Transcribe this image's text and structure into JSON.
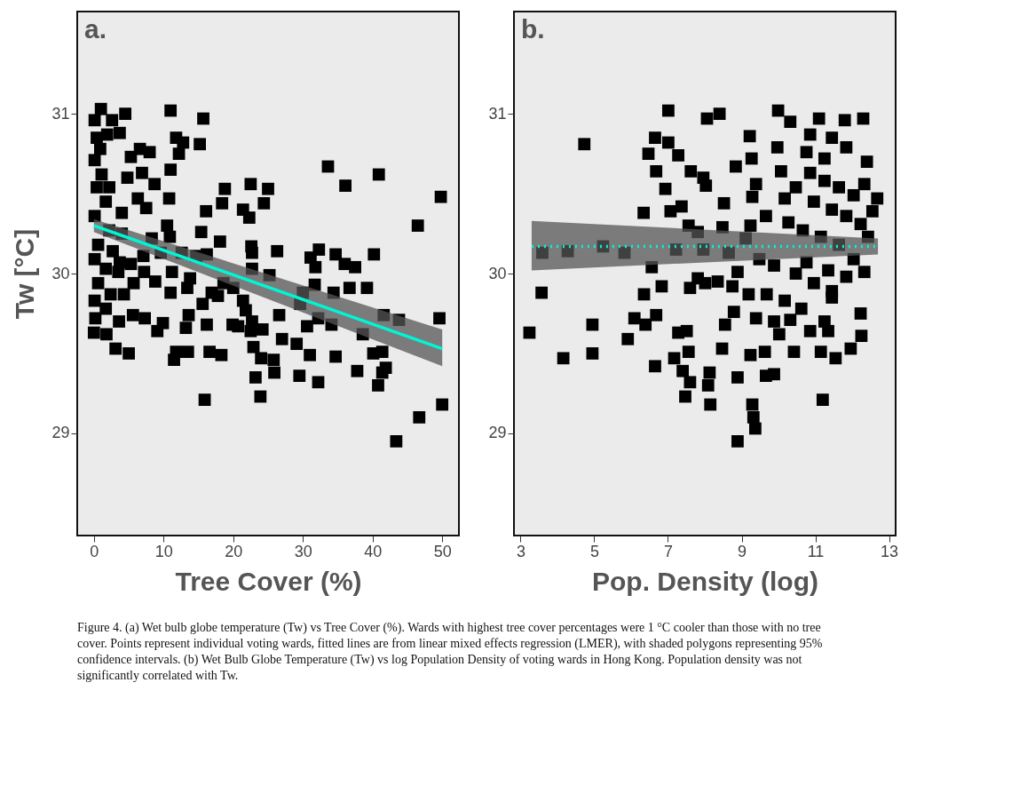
{
  "chart_data": [
    {
      "type": "scatter",
      "xlabel": "Tree Cover (%)",
      "ylabel": "Tw [°C]",
      "xlim": [
        -2.4,
        52.4
      ],
      "ylim": [
        28.36,
        31.64
      ],
      "xticks": [
        0,
        10,
        20,
        30,
        40,
        50
      ],
      "yticks": [
        29,
        30,
        31
      ],
      "grid": false,
      "legend": false,
      "annotations": [
        "a.",
        "Figure 4. (a) Wet bulb globe temperature (Tw) vs Tree Cover (%). Wards with highest tree cover percentages were 1 °C cooler than those with no tree cover. Points represent individual voting wards, fitted lines are from linear mixed effects regression (LMER), with shaded polygons representing 95% confidence intervals. (b) Wet Bulb Globe Temperature (Tw) vs log Population Density of voting wards in Hong Kong. Population density was not significantly correlated with Tw."
      ],
      "series": [
        {
          "type": "scatter",
          "marker": "square",
          "color": "#000000",
          "x": [
            1.0,
            4.5,
            11.0,
            15.7,
            0.1,
            2.6,
            3.7,
            11.8,
            12.8,
            15.2,
            12.2,
            5.3,
            6.6,
            8.0,
            6.9,
            4.8,
            8.7,
            11.0,
            10.8,
            33.6,
            40.9,
            36.1,
            18.8,
            22.5,
            25.0,
            24.4,
            49.8,
            18.4,
            16.1,
            21.4,
            22.3,
            46.5,
            6.3,
            7.5,
            4.0,
            10.5,
            15.4,
            18.1,
            22.6,
            22.7,
            26.3,
            32.3,
            31.1,
            34.7,
            40.2,
            36.0,
            37.5,
            31.8,
            22.7,
            25.2,
            31.7,
            36.7,
            39.2,
            30.0,
            34.4,
            26.6,
            29.6,
            41.6,
            43.8,
            49.6,
            32.2,
            34.1,
            30.6,
            38.6,
            27.0,
            29.1,
            31.0,
            34.7,
            40.1,
            41.4,
            41.9,
            41.4,
            37.8,
            40.8,
            32.2,
            29.5,
            25.9,
            23.2,
            25.8,
            24.0,
            22.9,
            23.9,
            15.9,
            46.7,
            50.0,
            43.4,
            22.5,
            24.2,
            19.9,
            20.7,
            22.7,
            16.2,
            18.3,
            16.6,
            13.5,
            11.5,
            11.8,
            13.2,
            13.6,
            9.9,
            9.1,
            7.3,
            5.0,
            3.1,
            1.8,
            0.0,
            0.2,
            3.6,
            5.6,
            15.6,
            16.9,
            17.8,
            21.4,
            21.8,
            20.0,
            18.6,
            13.4,
            11.0,
            13.8,
            11.2,
            8.8,
            7.2,
            5.7,
            5.3,
            12.6,
            16.2,
            14.7,
            8.3,
            9.6,
            7.1,
            10.9,
            0.4,
            0.1,
            1.1,
            0.4,
            1.7,
            0.1,
            2.2,
            0.6,
            2.7,
            0.1,
            1.7,
            3.5,
            0.6,
            2.4,
            0.1,
            1.7,
            4.3,
            4.0,
            3.7,
            0.9,
            1.9,
            2.2
          ],
          "values": [
            31.03,
            31.0,
            31.02,
            30.97,
            30.96,
            30.96,
            30.88,
            30.85,
            30.82,
            30.81,
            30.75,
            30.73,
            30.78,
            30.76,
            30.63,
            30.6,
            30.56,
            30.65,
            30.47,
            30.67,
            30.62,
            30.55,
            30.53,
            30.56,
            30.53,
            30.44,
            30.48,
            30.44,
            30.39,
            30.4,
            30.35,
            30.3,
            30.47,
            30.41,
            30.38,
            30.3,
            30.26,
            30.2,
            30.17,
            30.13,
            30.14,
            30.15,
            30.1,
            30.12,
            30.12,
            30.06,
            30.04,
            30.04,
            30.03,
            29.99,
            29.93,
            29.91,
            29.91,
            29.88,
            29.88,
            29.74,
            29.81,
            29.74,
            29.71,
            29.72,
            29.72,
            29.68,
            29.67,
            29.62,
            29.59,
            29.56,
            29.49,
            29.48,
            29.5,
            29.51,
            29.41,
            29.38,
            29.39,
            29.3,
            29.32,
            29.36,
            29.38,
            29.35,
            29.46,
            29.47,
            29.54,
            29.23,
            29.21,
            29.1,
            29.18,
            28.95,
            29.64,
            29.65,
            29.68,
            29.67,
            29.7,
            29.68,
            29.49,
            29.51,
            29.51,
            29.46,
            29.51,
            29.66,
            29.74,
            29.69,
            29.64,
            29.72,
            29.5,
            29.53,
            29.62,
            29.63,
            29.72,
            29.7,
            29.74,
            29.81,
            29.88,
            29.86,
            29.83,
            29.77,
            29.91,
            29.94,
            29.91,
            29.88,
            29.97,
            30.01,
            29.95,
            30.01,
            29.94,
            30.06,
            30.13,
            30.12,
            30.11,
            30.22,
            30.13,
            30.11,
            30.23,
            30.85,
            30.71,
            30.62,
            30.54,
            30.45,
            30.36,
            30.27,
            30.18,
            30.14,
            30.09,
            30.03,
            30.01,
            29.94,
            29.87,
            29.83,
            29.78,
            29.87,
            30.25,
            30.07,
            30.78,
            30.87,
            30.54
          ]
        },
        {
          "type": "line",
          "color": "#00f5d4",
          "line_style": "solid",
          "x": [
            0,
            50
          ],
          "values": [
            30.3,
            29.53
          ],
          "lower": [
            30.26,
            29.42
          ],
          "upper": [
            30.34,
            29.65
          ]
        }
      ]
    },
    {
      "type": "scatter",
      "xlabel": "Pop. Density (log)",
      "xlim": [
        2.82,
        13.18
      ],
      "ylim": [
        28.36,
        31.64
      ],
      "xticks": [
        3,
        5,
        7,
        9,
        11,
        13
      ],
      "yticks": [
        29,
        30,
        31
      ],
      "grid": false,
      "legend": false,
      "annotations": [
        "b."
      ],
      "series": [
        {
          "type": "scatter",
          "marker": "square",
          "color": "#000000",
          "x": [
            3.24,
            3.57,
            3.59,
            4.16,
            4.28,
            4.73,
            4.95,
            4.95,
            5.24,
            5.82,
            5.91,
            6.09,
            6.34,
            6.35,
            6.39,
            6.47,
            6.56,
            6.65,
            6.65,
            6.68,
            6.68,
            6.83,
            6.93,
            7.01,
            7.01,
            7.07,
            7.17,
            7.22,
            7.28,
            7.37,
            7.4,
            7.47,
            7.28,
            7.51,
            7.56,
            7.6,
            7.56,
            7.62,
            7.6,
            7.81,
            7.81,
            7.96,
            8.03,
            7.96,
            8.01,
            8.06,
            8.09,
            8.13,
            8.15,
            8.35,
            8.4,
            8.47,
            8.48,
            8.52,
            8.55,
            8.65,
            8.75,
            8.84,
            8.89,
            8.89,
            9.22,
            9.27,
            9.29,
            9.32,
            9.37,
            9.39,
            9.24,
            9.11,
            9.24,
            9.29,
            9.63,
            9.66,
            9.88,
            9.66,
            9.99,
            9.97,
            10.07,
            10.32,
            10.27,
            10.32,
            10.02,
            10.42,
            10.62,
            11.1,
            11.2,
            11.8,
            12.3,
            12.4,
            12.68,
            12.55,
            12.23,
            12.25,
            11.96,
            11.55,
            11.15,
            10.86,
            11.35,
            11.45,
            10.86,
            11.45,
            11.84,
            10.76,
            10.86,
            11.25,
            11.64,
            12.04,
            10.96,
            11.45,
            11.84,
            12.23,
            10.66,
            11.15,
            11.64,
            12.04,
            10.76,
            11.35,
            11.84,
            10.96,
            11.45,
            10.47,
            9.88,
            9.48,
            8.89,
            9.19,
            9.68,
            10.17,
            8.79,
            9.39,
            9.88,
            11.25,
            12.33,
            12.43,
            11.25,
            10.47,
            10.17,
            12.33
          ],
          "values": [
            29.63,
            29.88,
            30.13,
            29.47,
            30.14,
            30.81,
            29.68,
            29.5,
            30.17,
            30.13,
            29.59,
            29.72,
            30.38,
            29.87,
            29.68,
            30.75,
            30.04,
            30.85,
            29.42,
            30.64,
            29.74,
            29.92,
            30.53,
            30.82,
            31.02,
            30.39,
            29.47,
            30.15,
            30.74,
            30.42,
            29.39,
            29.23,
            29.63,
            29.64,
            29.51,
            29.32,
            30.3,
            30.64,
            29.91,
            29.97,
            30.26,
            30.6,
            30.55,
            30.15,
            29.94,
            30.97,
            29.3,
            29.38,
            29.18,
            29.95,
            31.0,
            29.53,
            30.29,
            30.44,
            29.68,
            30.13,
            29.92,
            30.67,
            29.35,
            28.95,
            30.86,
            30.72,
            29.18,
            29.1,
            29.03,
            30.56,
            30.3,
            30.22,
            29.49,
            30.48,
            29.51,
            29.36,
            29.37,
            30.36,
            31.02,
            30.79,
            30.64,
            30.95,
            30.32,
            29.71,
            29.62,
            29.51,
            29.78,
            30.97,
            29.21,
            30.96,
            30.97,
            30.7,
            30.47,
            30.39,
            29.75,
            29.61,
            29.53,
            29.47,
            29.51,
            29.64,
            29.64,
            29.85,
            30.87,
            30.85,
            30.79,
            30.76,
            30.63,
            30.58,
            30.54,
            30.49,
            30.45,
            30.4,
            30.36,
            30.31,
            30.27,
            30.23,
            30.18,
            30.09,
            30.07,
            30.02,
            29.98,
            29.94,
            29.89,
            30.0,
            30.05,
            30.09,
            30.01,
            29.87,
            29.87,
            29.83,
            29.76,
            29.72,
            29.7,
            29.7,
            30.01,
            30.23,
            30.72,
            30.54,
            30.47,
            30.56
          ]
        },
        {
          "type": "line",
          "color": "#00f5d4",
          "line_style": "dotted",
          "x": [
            3.3,
            12.7
          ],
          "values": [
            30.17,
            30.17
          ],
          "lower": [
            30.02,
            30.12
          ],
          "upper": [
            30.33,
            30.22
          ]
        }
      ]
    }
  ]
}
